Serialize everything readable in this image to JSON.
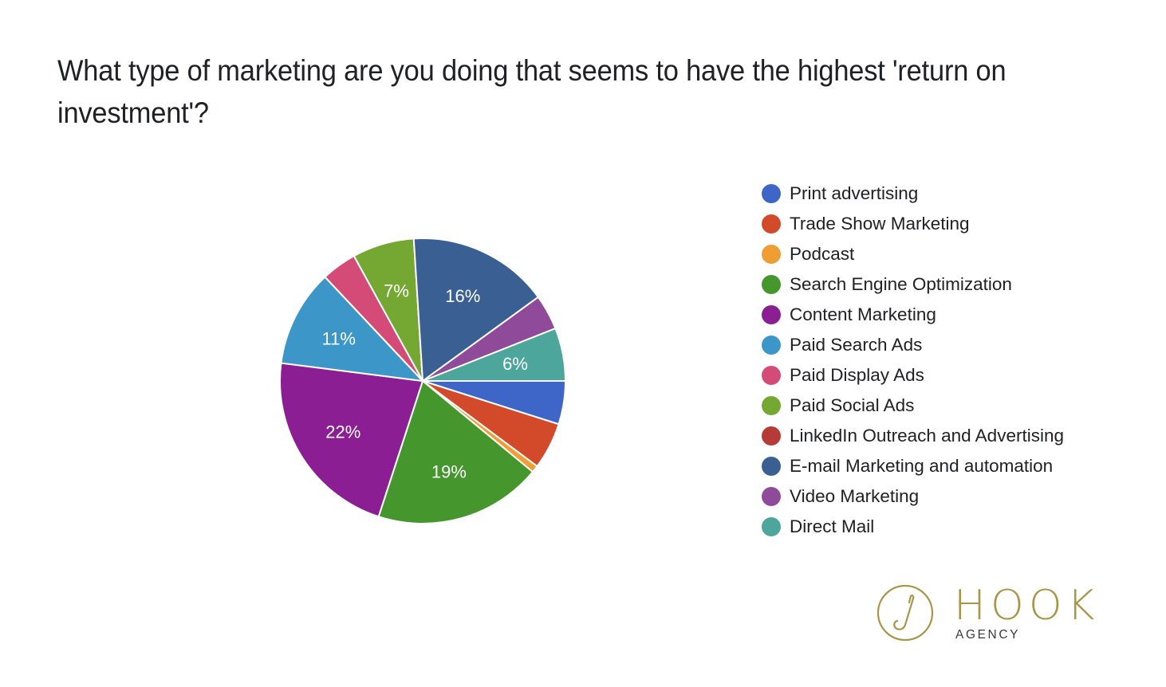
{
  "title": "What type of marketing are you doing that seems to have the highest 'return on investment'?",
  "chart_data": {
    "type": "pie",
    "title": "What type of marketing are you doing that seems to have the highest 'return on investment'?",
    "start_angle_deg": 0,
    "direction": "clockwise",
    "legend_position": "right",
    "categories": [
      "Print advertising",
      "Trade Show Marketing",
      "Podcast",
      "Search Engine Optimization",
      "Content Marketing",
      "Paid Search Ads",
      "Paid Display Ads",
      "Paid Social Ads",
      "LinkedIn Outreach and Advertising",
      "E-mail Marketing and automation",
      "Video Marketing",
      "Direct Mail"
    ],
    "values": [
      4.9,
      5.3,
      0.8,
      19,
      22,
      11,
      4,
      7,
      0,
      16,
      4,
      6
    ],
    "labels": [
      "",
      "",
      "",
      "19%",
      "22%",
      "11%",
      "",
      "7%",
      "",
      "16%",
      "",
      "6%"
    ],
    "colors": [
      "#3d66c8",
      "#d24a2a",
      "#f09d34",
      "#46962e",
      "#8b1e93",
      "#3c97c8",
      "#d54b78",
      "#75a832",
      "#b63a35",
      "#3a5f92",
      "#8f4a9a",
      "#4da69b"
    ]
  },
  "legend": [
    {
      "label": "Print advertising",
      "color": "#3d66c8"
    },
    {
      "label": "Trade Show Marketing",
      "color": "#d24a2a"
    },
    {
      "label": "Podcast",
      "color": "#f09d34"
    },
    {
      "label": "Search Engine Optimization",
      "color": "#46962e"
    },
    {
      "label": "Content Marketing",
      "color": "#8b1e93"
    },
    {
      "label": "Paid Search Ads",
      "color": "#3c97c8"
    },
    {
      "label": "Paid Display Ads",
      "color": "#d54b78"
    },
    {
      "label": "Paid Social Ads",
      "color": "#75a832"
    },
    {
      "label": "LinkedIn Outreach and Advertising",
      "color": "#b63a35"
    },
    {
      "label": "E-mail Marketing and automation",
      "color": "#3a5f92"
    },
    {
      "label": "Video Marketing",
      "color": "#8f4a9a"
    },
    {
      "label": "Direct Mail",
      "color": "#4da69b"
    }
  ],
  "logo": {
    "word": "HOOK",
    "sub": "AGENCY",
    "color": "#a8964a"
  }
}
